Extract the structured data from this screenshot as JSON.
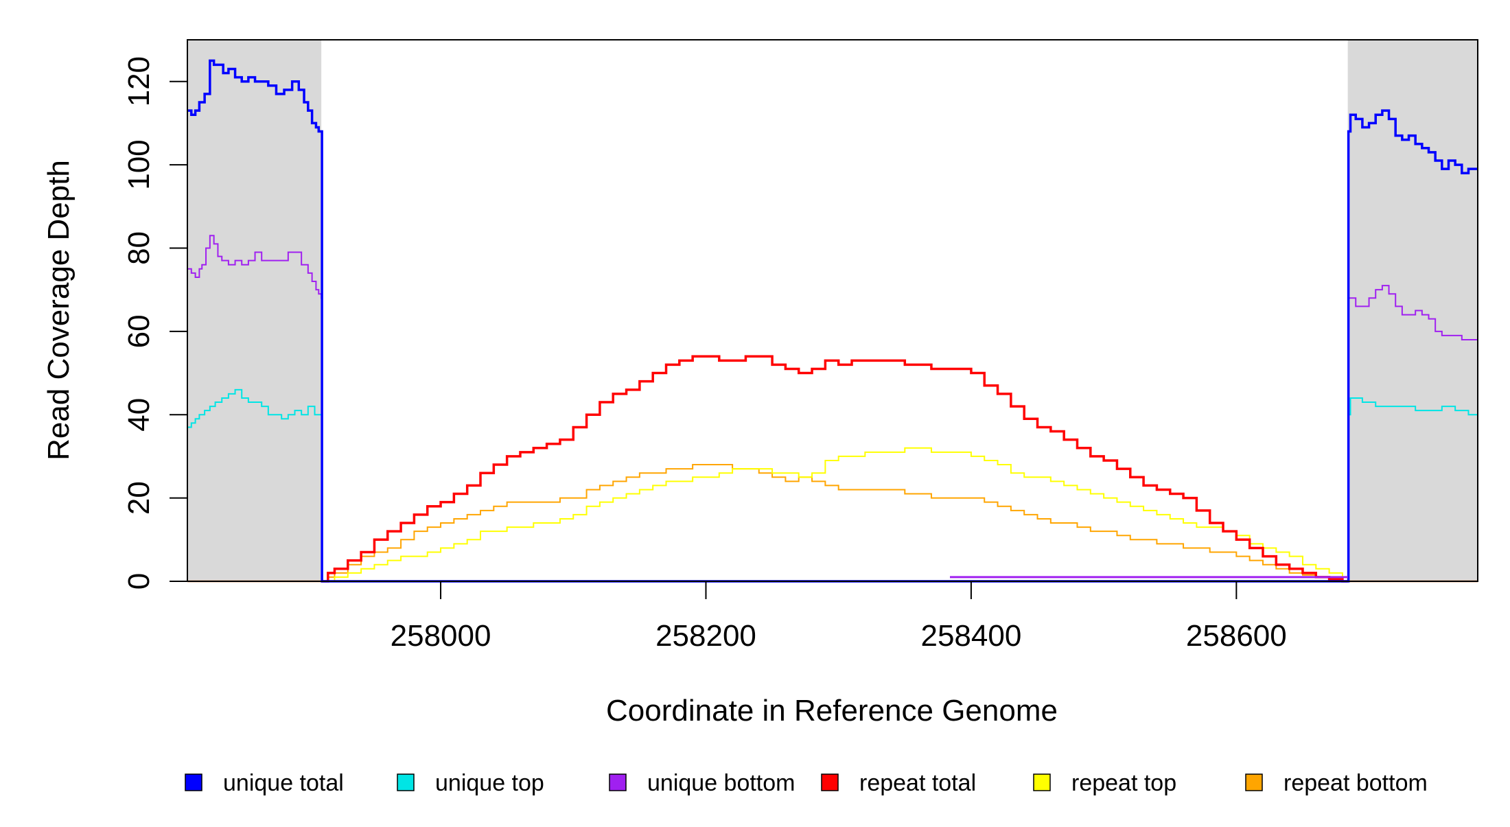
{
  "chart_data": {
    "type": "line",
    "title": "",
    "xlabel": "Coordinate in Reference Genome",
    "ylabel": "Read Coverage Depth",
    "xlim": [
      257809,
      258782
    ],
    "ylim": [
      0,
      130
    ],
    "x_ticks": [
      258000,
      258200,
      258400,
      258600
    ],
    "y_ticks": [
      0,
      20,
      40,
      60,
      80,
      100,
      120
    ],
    "shaded_regions": [
      {
        "x0": 257809,
        "x1": 257910,
        "color": "#d9d9d9"
      },
      {
        "x0": 258684,
        "x1": 258782,
        "color": "#d9d9d9"
      }
    ],
    "legend_position": "bottom",
    "series": [
      {
        "name": "unique total",
        "color": "#0000ff",
        "x": [
          257809,
          257812,
          257815,
          257818,
          257822,
          257826,
          257829,
          257833,
          257836,
          257840,
          257845,
          257850,
          257855,
          257860,
          257865,
          257870,
          257876,
          257882,
          257888,
          257893,
          257897,
          257900,
          257903,
          257906,
          257908,
          257910,
          257910.5,
          258684,
          258684.5,
          258686,
          258690,
          258695,
          258700,
          258705,
          258710,
          258715,
          258720,
          258725,
          258730,
          258735,
          258740,
          258745,
          258750,
          258755,
          258760,
          258765,
          258770,
          258775,
          258782
        ],
        "y": [
          113,
          112,
          113,
          115,
          117,
          125,
          124,
          124,
          122,
          123,
          121,
          120,
          121,
          120,
          120,
          119,
          117,
          118,
          120,
          118,
          115,
          113,
          110,
          109,
          108,
          108,
          0,
          0,
          108,
          112,
          111,
          109,
          110,
          112,
          113,
          111,
          107,
          106,
          107,
          105,
          104,
          103,
          101,
          99,
          101,
          100,
          98,
          99,
          99
        ]
      },
      {
        "name": "unique top",
        "color": "#00e5e5",
        "x": [
          257809,
          257812,
          257815,
          257818,
          257822,
          257826,
          257830,
          257835,
          257840,
          257845,
          257850,
          257855,
          257860,
          257865,
          257870,
          257875,
          257880,
          257885,
          257890,
          257895,
          257900,
          257905,
          257910,
          257910.5,
          258684,
          258684.5,
          258686,
          258695,
          258705,
          258715,
          258725,
          258735,
          258745,
          258755,
          258765,
          258775,
          258782
        ],
        "y": [
          37,
          38,
          39,
          40,
          41,
          42,
          43,
          44,
          45,
          46,
          44,
          43,
          43,
          42,
          40,
          40,
          39,
          40,
          41,
          40,
          42,
          40,
          40,
          0,
          0,
          40,
          44,
          43,
          42,
          42,
          42,
          41,
          41,
          42,
          41,
          40,
          40
        ]
      },
      {
        "name": "unique bottom",
        "color": "#a020f0",
        "x": [
          257809,
          257812,
          257815,
          257818,
          257820,
          257823,
          257826,
          257829,
          257832,
          257835,
          257840,
          257845,
          257850,
          257855,
          257860,
          257865,
          257870,
          257875,
          257880,
          257885,
          257890,
          257895,
          257900,
          257903,
          257906,
          257908,
          257910,
          257910.5,
          258684,
          258684.5,
          258686,
          258690,
          258695,
          258700,
          258705,
          258710,
          258715,
          258720,
          258725,
          258730,
          258735,
          258740,
          258745,
          258750,
          258755,
          258760,
          258770,
          258775,
          258782
        ],
        "y": [
          75,
          74,
          73,
          75,
          76,
          80,
          83,
          81,
          78,
          77,
          76,
          77,
          76,
          77,
          79,
          77,
          77,
          77,
          77,
          79,
          79,
          76,
          74,
          72,
          70,
          69,
          68,
          0,
          0,
          68,
          68,
          66,
          66,
          68,
          70,
          71,
          69,
          66,
          64,
          64,
          65,
          64,
          63,
          60,
          59,
          59,
          58,
          58,
          58
        ]
      },
      {
        "name": "repeat total",
        "color": "#ff0000",
        "x": [
          257910,
          257915,
          257920,
          257930,
          257940,
          257950,
          257960,
          257970,
          257980,
          257990,
          258000,
          258010,
          258020,
          258030,
          258040,
          258050,
          258060,
          258070,
          258080,
          258090,
          258100,
          258110,
          258120,
          258130,
          258140,
          258150,
          258160,
          258170,
          258180,
          258190,
          258200,
          258210,
          258220,
          258230,
          258240,
          258250,
          258260,
          258270,
          258280,
          258290,
          258300,
          258310,
          258320,
          258330,
          258340,
          258350,
          258360,
          258370,
          258380,
          258390,
          258400,
          258410,
          258420,
          258430,
          258440,
          258450,
          258460,
          258470,
          258480,
          258490,
          258500,
          258510,
          258520,
          258530,
          258540,
          258550,
          258560,
          258570,
          258580,
          258590,
          258600,
          258610,
          258620,
          258630,
          258640,
          258650,
          258660,
          258670,
          258680,
          258684
        ],
        "y": [
          0,
          2,
          3,
          5,
          7,
          10,
          12,
          14,
          16,
          18,
          19,
          21,
          23,
          26,
          28,
          30,
          31,
          32,
          33,
          34,
          37,
          40,
          43,
          45,
          46,
          48,
          50,
          52,
          53,
          54,
          54,
          53,
          53,
          54,
          54,
          52,
          51,
          50,
          51,
          53,
          52,
          53,
          53,
          53,
          53,
          52,
          52,
          51,
          51,
          51,
          50,
          47,
          45,
          42,
          39,
          37,
          36,
          34,
          32,
          30,
          29,
          27,
          25,
          23,
          22,
          21,
          20,
          17,
          14,
          12,
          10,
          8,
          6,
          4,
          3,
          2,
          1,
          0.5,
          0,
          0
        ]
      },
      {
        "name": "repeat top",
        "color": "#ffff00",
        "x": [
          257910,
          257920,
          257930,
          257940,
          257950,
          257960,
          257970,
          257980,
          257990,
          258000,
          258010,
          258020,
          258030,
          258040,
          258050,
          258060,
          258070,
          258080,
          258090,
          258100,
          258110,
          258120,
          258130,
          258140,
          258150,
          258160,
          258170,
          258180,
          258190,
          258200,
          258210,
          258220,
          258230,
          258240,
          258250,
          258260,
          258270,
          258280,
          258290,
          258300,
          258310,
          258320,
          258330,
          258340,
          258350,
          258360,
          258370,
          258380,
          258390,
          258400,
          258410,
          258420,
          258430,
          258440,
          258450,
          258460,
          258470,
          258480,
          258490,
          258500,
          258510,
          258520,
          258530,
          258540,
          258550,
          258560,
          258570,
          258580,
          258590,
          258600,
          258610,
          258620,
          258630,
          258640,
          258650,
          258660,
          258670,
          258680,
          258684
        ],
        "y": [
          0,
          1,
          2,
          3,
          4,
          5,
          6,
          6,
          7,
          8,
          9,
          10,
          12,
          12,
          13,
          13,
          14,
          14,
          15,
          16,
          18,
          19,
          20,
          21,
          22,
          23,
          24,
          24,
          25,
          25,
          26,
          27,
          27,
          27,
          26,
          26,
          25,
          26,
          29,
          30,
          30,
          31,
          31,
          31,
          32,
          32,
          31,
          31,
          31,
          30,
          29,
          28,
          26,
          25,
          25,
          24,
          23,
          22,
          21,
          20,
          19,
          18,
          17,
          16,
          15,
          14,
          13,
          13,
          12,
          11,
          9,
          8,
          7,
          6,
          4,
          3,
          2,
          1,
          0
        ]
      },
      {
        "name": "repeat bottom",
        "color": "#ffa500",
        "x": [
          257910,
          257915,
          257920,
          257930,
          257940,
          257950,
          257960,
          257970,
          257980,
          257990,
          258000,
          258010,
          258020,
          258030,
          258040,
          258050,
          258060,
          258070,
          258080,
          258090,
          258100,
          258110,
          258120,
          258130,
          258140,
          258150,
          258160,
          258170,
          258180,
          258190,
          258200,
          258210,
          258220,
          258230,
          258240,
          258250,
          258260,
          258270,
          258280,
          258290,
          258300,
          258310,
          258320,
          258330,
          258340,
          258350,
          258360,
          258370,
          258380,
          258390,
          258400,
          258410,
          258420,
          258430,
          258440,
          258450,
          258460,
          258470,
          258480,
          258490,
          258500,
          258510,
          258520,
          258530,
          258540,
          258550,
          258560,
          258570,
          258580,
          258590,
          258600,
          258610,
          258620,
          258630,
          258640,
          258650,
          258660,
          258670,
          258680,
          258684
        ],
        "y": [
          0,
          1,
          2,
          4,
          6,
          7,
          8,
          10,
          12,
          13,
          14,
          15,
          16,
          17,
          18,
          19,
          19,
          19,
          19,
          20,
          20,
          22,
          23,
          24,
          25,
          26,
          26,
          27,
          27,
          28,
          28,
          28,
          27,
          27,
          26,
          25,
          24,
          25,
          24,
          23,
          22,
          22,
          22,
          22,
          22,
          21,
          21,
          20,
          20,
          20,
          20,
          19,
          18,
          17,
          16,
          15,
          14,
          14,
          13,
          12,
          12,
          11,
          10,
          10,
          9,
          9,
          8,
          8,
          7,
          7,
          6,
          5,
          4,
          3,
          2,
          1.5,
          1,
          0.5,
          0,
          0
        ]
      }
    ],
    "flat_segments": [
      {
        "name": "unique bottom (repeat region)",
        "color": "#a020f0",
        "x": [
          258384,
          258684
        ],
        "y": 1
      }
    ]
  }
}
